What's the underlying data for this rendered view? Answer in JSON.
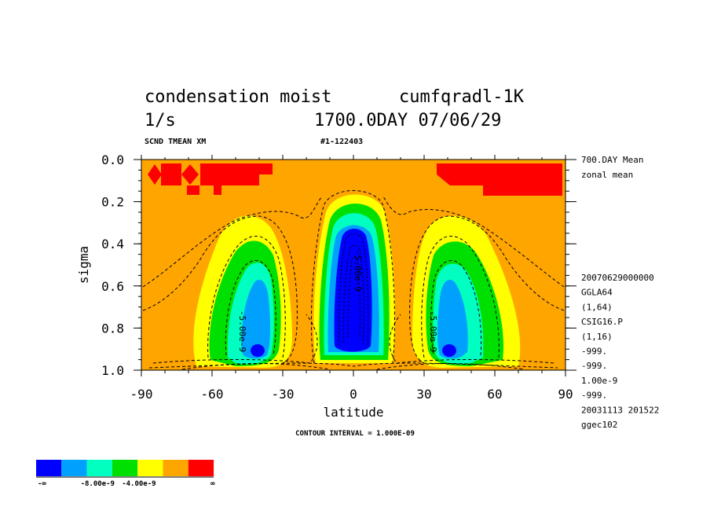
{
  "header": {
    "title_line1": "condensation moist",
    "title_overlap": "cumfqradl-1K",
    "unit": "1/s",
    "time_stamp": "1700.0DAY 07/06/29",
    "var_code": "SCND TMEAN XM",
    "run_id": "#1-122403"
  },
  "right_info": {
    "mean_line1": "700.DAY Mean",
    "mean_line2": "zonal mean",
    "meta": [
      "20070629000000",
      "GGLA64",
      "(1,64)",
      "CSIG16.P",
      "(1,16)",
      "-999.",
      "-999.",
      "1.00e-9",
      "-999.",
      "20031113 201522",
      "ggec102"
    ]
  },
  "footer": {
    "contour_interval": "CONTOUR INTERVAL = 1.000E-09"
  },
  "colorbar": {
    "colors": [
      "#0000ff",
      "#00a0ff",
      "#00ffc0",
      "#00e000",
      "#ffff00",
      "#ffa500",
      "#ff0000"
    ],
    "labels": [
      "-∞",
      "-8.00e-9",
      "-4.00e-9",
      "∞"
    ]
  },
  "colors": {
    "background_fill": "#ffa500",
    "positive_fill": "#ff0000"
  },
  "chart_data": {
    "type": "heatmap",
    "xlabel": "latitude",
    "ylabel": "sigma",
    "xlim": [
      -90,
      90
    ],
    "ylim": [
      1.0,
      0.0
    ],
    "xticks": [
      "-90",
      "-60",
      "-30",
      "0",
      "30",
      "60",
      "90"
    ],
    "yticks": [
      "0.0",
      "0.2",
      "0.4",
      "0.6",
      "0.8",
      "1.0"
    ],
    "xtick_values": [
      -90,
      -60,
      -30,
      0,
      30,
      60,
      90
    ],
    "ytick_values": [
      0.0,
      0.2,
      0.4,
      0.6,
      0.8,
      1.0
    ],
    "contour_labels": [
      "-5.00e-9",
      "-5.00e-9",
      "-5.00e-9"
    ],
    "field_extrema": [
      {
        "lat": -40,
        "sigma": 0.9,
        "approx_value": -1.2e-08
      },
      {
        "lat": 0,
        "sigma": 0.6,
        "approx_value": -1.3e-08
      },
      {
        "lat": 40,
        "sigma": 0.9,
        "approx_value": -1.2e-08
      }
    ]
  }
}
